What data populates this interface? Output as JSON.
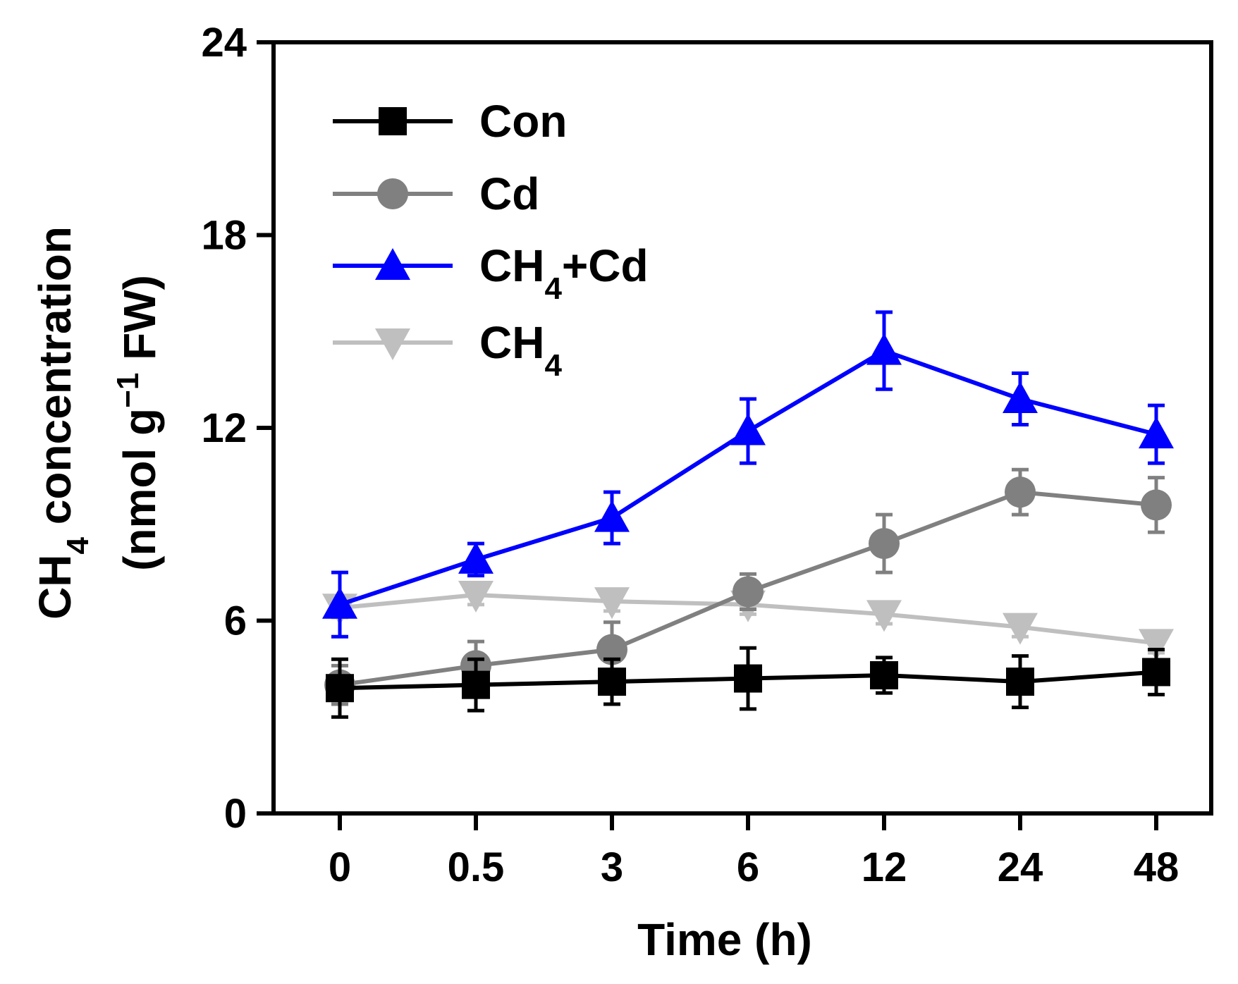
{
  "chart_data": {
    "type": "line",
    "title": "",
    "xlabel": "Time (h)",
    "ylabel": {
      "line1": {
        "prefix": "CH",
        "sub": "4",
        "suffix": " concentration"
      },
      "line2": {
        "prefix": "(nmol g",
        "sup": "−1",
        "suffix": " FW)"
      }
    },
    "categories": [
      "0",
      "0.5",
      "3",
      "6",
      "12",
      "24",
      "48"
    ],
    "ylim": [
      0,
      24
    ],
    "yticks": [
      "0",
      "6",
      "12",
      "18",
      "24"
    ],
    "grid": false,
    "legend_position": "top-left",
    "series": [
      {
        "name": "Con",
        "label": {
          "prefix": "Con",
          "sub": "",
          "suffix": ""
        },
        "color": "#000000",
        "marker": "square",
        "values": [
          3.9,
          4.0,
          4.1,
          4.2,
          4.3,
          4.1,
          4.4
        ],
        "errors": [
          0.9,
          0.8,
          0.7,
          0.95,
          0.55,
          0.8,
          0.7
        ]
      },
      {
        "name": "Cd",
        "label": {
          "prefix": "Cd",
          "sub": "",
          "suffix": ""
        },
        "color": "#808080",
        "marker": "circle",
        "values": [
          4.0,
          4.6,
          5.1,
          6.9,
          8.4,
          10.0,
          9.6
        ],
        "errors": [
          0.6,
          0.75,
          0.85,
          0.55,
          0.9,
          0.7,
          0.85
        ]
      },
      {
        "name": "CH4+Cd",
        "label": {
          "prefix": "CH",
          "sub": "4",
          "suffix": "+Cd"
        },
        "color": "#0000ff",
        "marker": "triangle-up",
        "values": [
          6.5,
          7.9,
          9.2,
          11.9,
          14.4,
          12.9,
          11.8
        ],
        "errors": [
          1.0,
          0.5,
          0.8,
          1.0,
          1.2,
          0.8,
          0.9
        ]
      },
      {
        "name": "CH4",
        "label": {
          "prefix": "CH",
          "sub": "4",
          "suffix": ""
        },
        "color": "#bfbfbf",
        "marker": "triangle-down",
        "values": [
          6.4,
          6.8,
          6.6,
          6.5,
          6.2,
          5.8,
          5.3
        ],
        "errors": [
          0.3,
          0.3,
          0.3,
          0.3,
          0.3,
          0.3,
          0.3
        ]
      }
    ]
  }
}
